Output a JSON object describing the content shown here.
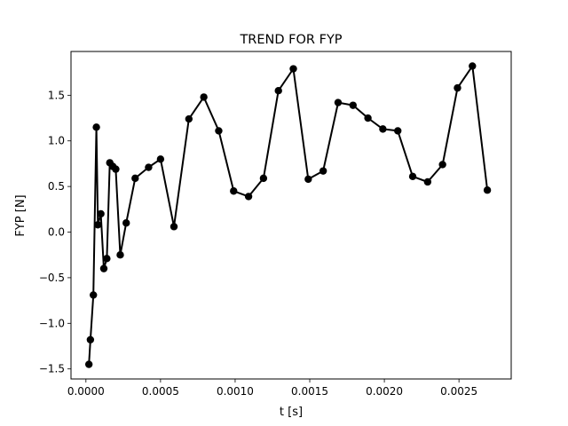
{
  "chart_data": {
    "type": "line",
    "title": "TREND FOR FYP",
    "xlabel": "t [s]",
    "ylabel": "FYP [N]",
    "xlim": [
      -0.0001,
      0.00285
    ],
    "ylim": [
      -1.61,
      1.98
    ],
    "xticks": [
      0.0,
      0.0005,
      0.001,
      0.0015,
      0.002,
      0.0025
    ],
    "xtick_labels": [
      "0.0000",
      "0.0005",
      "0.0010",
      "0.0015",
      "0.0020",
      "0.0025"
    ],
    "yticks": [
      -1.5,
      -1.0,
      -0.5,
      0.0,
      0.5,
      1.0,
      1.5
    ],
    "ytick_labels": [
      "−1.5",
      "−1.0",
      "−0.5",
      "0.0",
      "0.5",
      "1.0",
      "1.5"
    ],
    "grid": false,
    "legend": "none",
    "colors": {
      "line": "#000000",
      "marker": "#000000",
      "background": "#ffffff"
    },
    "series": [
      {
        "x": [
          2e-05,
          3e-05,
          5e-05,
          7e-05,
          8e-05,
          0.0001,
          0.00012,
          0.00014,
          0.00016,
          0.00018,
          0.0002,
          0.00023,
          0.00027,
          0.00033,
          0.00042,
          0.0005,
          0.00059,
          0.00069,
          0.00079,
          0.00089,
          0.00099,
          0.00109,
          0.00119,
          0.00129,
          0.00139,
          0.00149,
          0.00159,
          0.00169,
          0.00179,
          0.00189,
          0.00199,
          0.00209,
          0.00219,
          0.00229,
          0.00239,
          0.00249,
          0.00259,
          0.00269
        ],
        "y": [
          -1.45,
          -1.18,
          -0.69,
          1.15,
          0.08,
          0.2,
          -0.4,
          -0.29,
          0.76,
          0.72,
          0.69,
          -0.25,
          0.1,
          0.59,
          0.71,
          0.8,
          0.06,
          1.24,
          1.48,
          1.11,
          0.45,
          0.39,
          0.59,
          1.55,
          1.79,
          0.58,
          0.67,
          1.42,
          1.39,
          1.25,
          1.13,
          1.11,
          0.61,
          0.55,
          0.74,
          1.58,
          1.82,
          0.46
        ]
      }
    ]
  }
}
